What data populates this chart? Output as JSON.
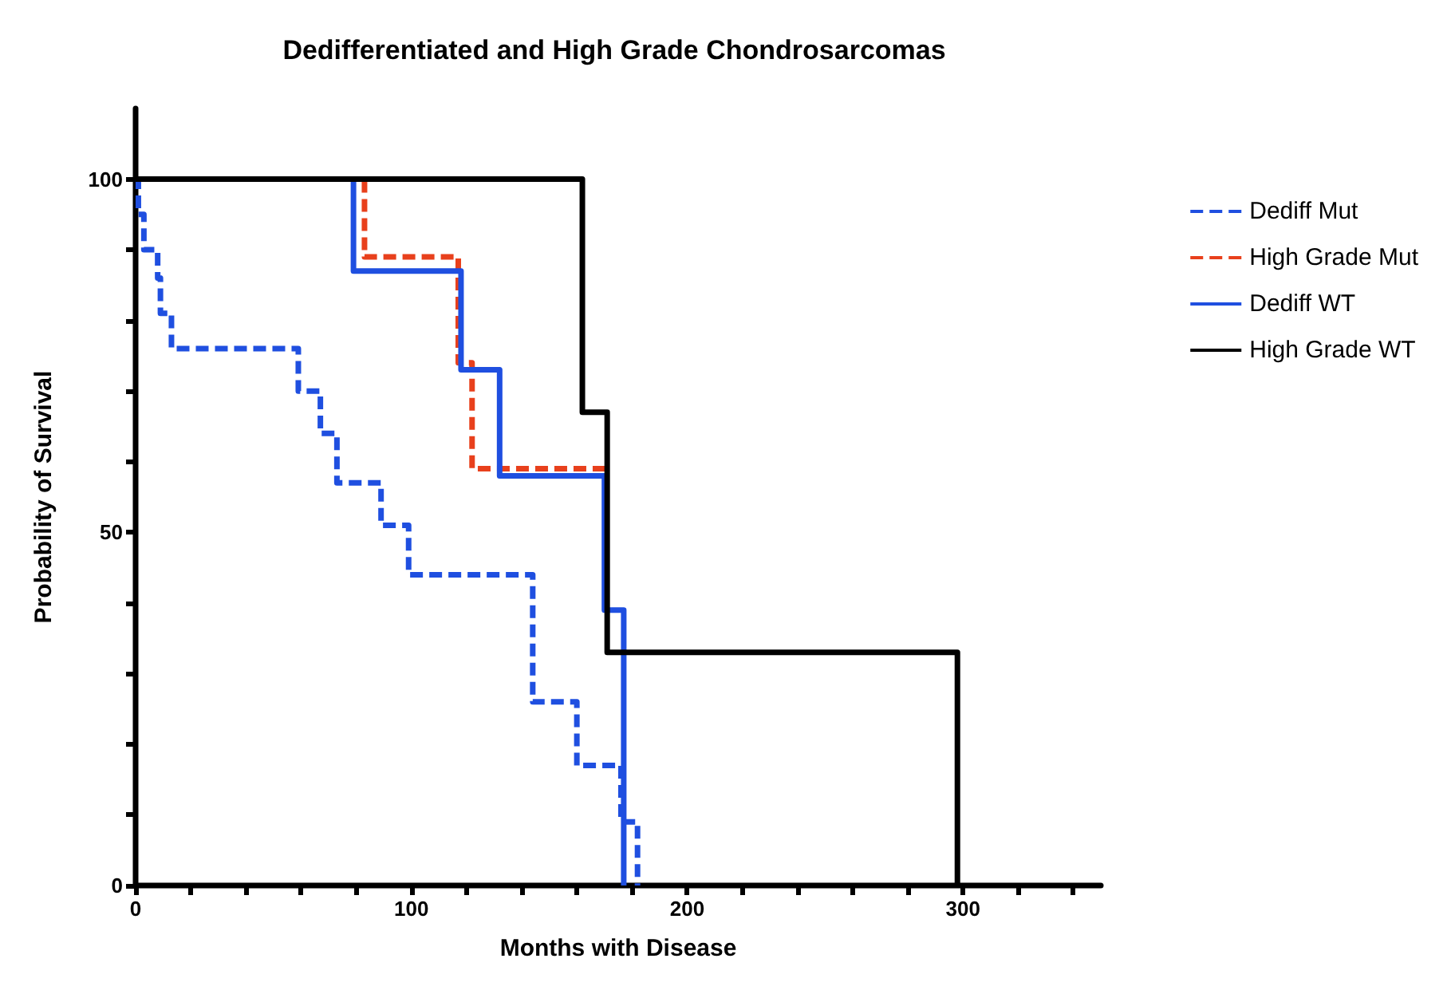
{
  "chart_data": {
    "type": "step",
    "title": "Dedifferentiated and High Grade Chondrosarcomas",
    "xlabel": "Months with Disease",
    "ylabel": "Probability of Survival",
    "xlim": [
      0,
      350
    ],
    "ylim": [
      0,
      110
    ],
    "xticks": [
      0,
      {
        "value": 20,
        "label": null
      },
      {
        "value": 40,
        "label": null
      },
      {
        "value": 60,
        "label": null
      },
      {
        "value": 80,
        "label": null
      },
      100,
      {
        "value": 120,
        "label": null
      },
      {
        "value": 140,
        "label": null
      },
      {
        "value": 160,
        "label": null
      },
      {
        "value": 180,
        "label": null
      },
      200,
      {
        "value": 220,
        "label": null
      },
      {
        "value": 240,
        "label": null
      },
      {
        "value": 260,
        "label": null
      },
      {
        "value": 280,
        "label": null
      },
      300,
      {
        "value": 320,
        "label": null
      },
      {
        "value": 340,
        "label": null
      }
    ],
    "yticks": [
      0,
      {
        "value": 10,
        "label": null
      },
      {
        "value": 20,
        "label": null
      },
      {
        "value": 30,
        "label": null
      },
      {
        "value": 40,
        "label": null
      },
      50,
      {
        "value": 60,
        "label": null
      },
      {
        "value": 70,
        "label": null
      },
      {
        "value": 80,
        "label": null
      },
      {
        "value": 90,
        "label": null
      },
      100
    ],
    "grid": false,
    "legend": "right",
    "marker": "none",
    "series": [
      {
        "name": "Dediff Mut",
        "color": "#1f4fe0",
        "line_style": "dashed",
        "x": [
          0,
          1,
          3,
          8,
          9,
          13,
          59,
          67,
          73,
          89,
          99,
          144,
          160,
          176,
          182
        ],
        "values": [
          100,
          95,
          90,
          86,
          81,
          76,
          70,
          64,
          57,
          51,
          44,
          26,
          17,
          9,
          0
        ]
      },
      {
        "name": "High Grade Mut",
        "color": "#e8401c",
        "line_style": "dashed",
        "x": [
          0,
          83,
          117,
          122,
          172
        ],
        "values": [
          100,
          89,
          74,
          59,
          59
        ]
      },
      {
        "name": "Dediff WT",
        "color": "#1f4fe0",
        "line_style": "solid",
        "x": [
          0,
          79,
          118,
          132,
          170,
          177
        ],
        "values": [
          100,
          87,
          73,
          58,
          39,
          0
        ]
      },
      {
        "name": "High Grade WT",
        "color": "#000000",
        "line_style": "solid",
        "x": [
          0,
          162,
          171,
          298
        ],
        "values": [
          100,
          67,
          33,
          0
        ]
      }
    ]
  }
}
